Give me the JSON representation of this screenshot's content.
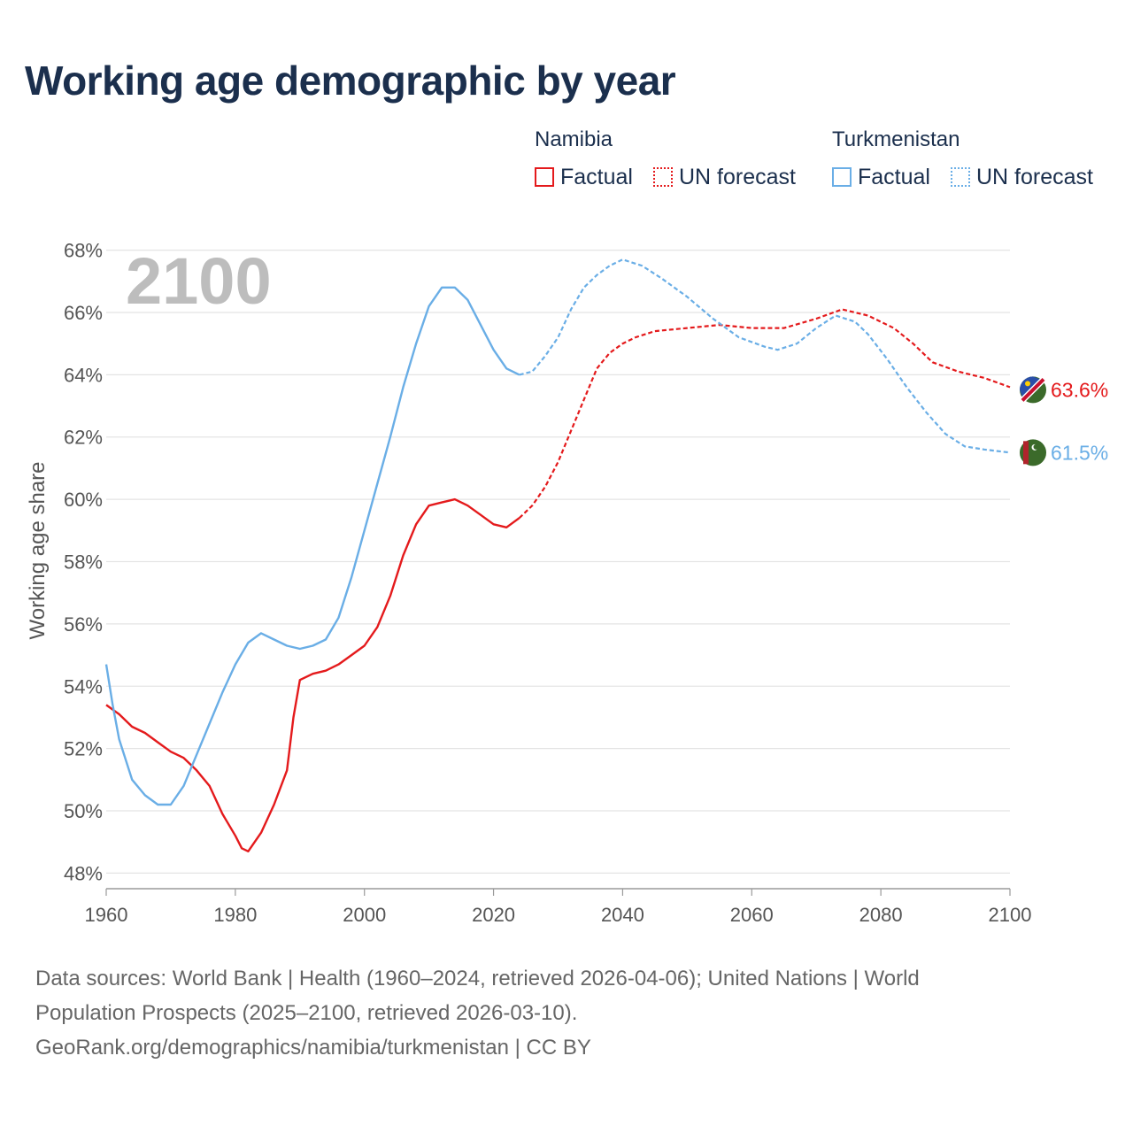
{
  "title": "Working age demographic by year",
  "legend": {
    "groups": [
      {
        "country": "Namibia",
        "factual_label": "Factual",
        "forecast_label": "UN forecast",
        "color": "#e41a1c"
      },
      {
        "country": "Turkmenistan",
        "factual_label": "Factual",
        "forecast_label": "UN forecast",
        "color": "#6aaee6"
      }
    ]
  },
  "sources": {
    "line1": "Data sources: World Bank | Health (1960–2024, retrieved 2026-04-06); United Nations | World",
    "line2": "Population Prospects (2025–2100, retrieved 2026-03-10).",
    "line3": "GeoRank.org/demographics/namibia/turkmenistan | CC BY"
  },
  "chart_data": {
    "type": "line",
    "title": "Working age demographic by year",
    "year_watermark": "2100",
    "xlabel": "",
    "ylabel": "Working age share",
    "xlim": [
      1960,
      2100
    ],
    "ylim": [
      47.5,
      68.5
    ],
    "x_ticks": [
      1960,
      1980,
      2000,
      2020,
      2040,
      2060,
      2080,
      2100
    ],
    "x_tick_labels": [
      "1960",
      "1980",
      "2000",
      "2020",
      "2040",
      "2060",
      "2080",
      "2100"
    ],
    "y_ticks": [
      48,
      50,
      52,
      54,
      56,
      58,
      60,
      62,
      64,
      66,
      68
    ],
    "y_tick_labels": [
      "48%",
      "50%",
      "52%",
      "54%",
      "56%",
      "58%",
      "60%",
      "62%",
      "64%",
      "66%",
      "68%"
    ],
    "grid": true,
    "forecast_start_year": 2024,
    "series": [
      {
        "name": "Namibia",
        "color": "#e41a1c",
        "end_label": "63.6%",
        "flag_icon": "namibia-flag-icon",
        "points": [
          [
            1960,
            53.4
          ],
          [
            1962,
            53.1
          ],
          [
            1964,
            52.7
          ],
          [
            1966,
            52.5
          ],
          [
            1968,
            52.2
          ],
          [
            1970,
            51.9
          ],
          [
            1972,
            51.7
          ],
          [
            1974,
            51.3
          ],
          [
            1976,
            50.8
          ],
          [
            1978,
            49.9
          ],
          [
            1980,
            49.2
          ],
          [
            1981,
            48.8
          ],
          [
            1982,
            48.7
          ],
          [
            1984,
            49.3
          ],
          [
            1986,
            50.2
          ],
          [
            1988,
            51.3
          ],
          [
            1989,
            53.0
          ],
          [
            1990,
            54.2
          ],
          [
            1992,
            54.4
          ],
          [
            1994,
            54.5
          ],
          [
            1996,
            54.7
          ],
          [
            1998,
            55.0
          ],
          [
            2000,
            55.3
          ],
          [
            2002,
            55.9
          ],
          [
            2004,
            56.9
          ],
          [
            2006,
            58.2
          ],
          [
            2008,
            59.2
          ],
          [
            2010,
            59.8
          ],
          [
            2012,
            59.9
          ],
          [
            2014,
            60.0
          ],
          [
            2016,
            59.8
          ],
          [
            2018,
            59.5
          ],
          [
            2020,
            59.2
          ],
          [
            2022,
            59.1
          ],
          [
            2024,
            59.4
          ],
          [
            2026,
            59.8
          ],
          [
            2028,
            60.4
          ],
          [
            2030,
            61.2
          ],
          [
            2032,
            62.2
          ],
          [
            2034,
            63.2
          ],
          [
            2036,
            64.2
          ],
          [
            2038,
            64.7
          ],
          [
            2040,
            65.0
          ],
          [
            2042,
            65.2
          ],
          [
            2045,
            65.4
          ],
          [
            2050,
            65.5
          ],
          [
            2055,
            65.6
          ],
          [
            2060,
            65.5
          ],
          [
            2065,
            65.5
          ],
          [
            2070,
            65.8
          ],
          [
            2074,
            66.1
          ],
          [
            2078,
            65.9
          ],
          [
            2082,
            65.5
          ],
          [
            2085,
            65.0
          ],
          [
            2088,
            64.4
          ],
          [
            2092,
            64.1
          ],
          [
            2096,
            63.9
          ],
          [
            2100,
            63.6
          ]
        ]
      },
      {
        "name": "Turkmenistan",
        "color": "#6aaee6",
        "end_label": "61.5%",
        "flag_icon": "turkmenistan-flag-icon",
        "points": [
          [
            1960,
            54.7
          ],
          [
            1961,
            53.4
          ],
          [
            1962,
            52.3
          ],
          [
            1964,
            51.0
          ],
          [
            1966,
            50.5
          ],
          [
            1968,
            50.2
          ],
          [
            1970,
            50.2
          ],
          [
            1972,
            50.8
          ],
          [
            1974,
            51.8
          ],
          [
            1976,
            52.8
          ],
          [
            1978,
            53.8
          ],
          [
            1980,
            54.7
          ],
          [
            1982,
            55.4
          ],
          [
            1984,
            55.7
          ],
          [
            1986,
            55.5
          ],
          [
            1988,
            55.3
          ],
          [
            1990,
            55.2
          ],
          [
            1992,
            55.3
          ],
          [
            1994,
            55.5
          ],
          [
            1996,
            56.2
          ],
          [
            1998,
            57.5
          ],
          [
            2000,
            59.0
          ],
          [
            2002,
            60.5
          ],
          [
            2004,
            62.0
          ],
          [
            2006,
            63.6
          ],
          [
            2008,
            65.0
          ],
          [
            2010,
            66.2
          ],
          [
            2012,
            66.8
          ],
          [
            2014,
            66.8
          ],
          [
            2016,
            66.4
          ],
          [
            2018,
            65.6
          ],
          [
            2020,
            64.8
          ],
          [
            2022,
            64.2
          ],
          [
            2024,
            64.0
          ],
          [
            2026,
            64.1
          ],
          [
            2028,
            64.6
          ],
          [
            2030,
            65.2
          ],
          [
            2032,
            66.1
          ],
          [
            2034,
            66.8
          ],
          [
            2036,
            67.2
          ],
          [
            2038,
            67.5
          ],
          [
            2040,
            67.7
          ],
          [
            2043,
            67.5
          ],
          [
            2046,
            67.1
          ],
          [
            2050,
            66.5
          ],
          [
            2054,
            65.8
          ],
          [
            2058,
            65.2
          ],
          [
            2062,
            64.9
          ],
          [
            2064,
            64.8
          ],
          [
            2067,
            65.0
          ],
          [
            2070,
            65.5
          ],
          [
            2073,
            65.9
          ],
          [
            2076,
            65.7
          ],
          [
            2078,
            65.3
          ],
          [
            2081,
            64.5
          ],
          [
            2084,
            63.6
          ],
          [
            2087,
            62.8
          ],
          [
            2090,
            62.1
          ],
          [
            2093,
            61.7
          ],
          [
            2096,
            61.6
          ],
          [
            2100,
            61.5
          ]
        ]
      }
    ]
  }
}
